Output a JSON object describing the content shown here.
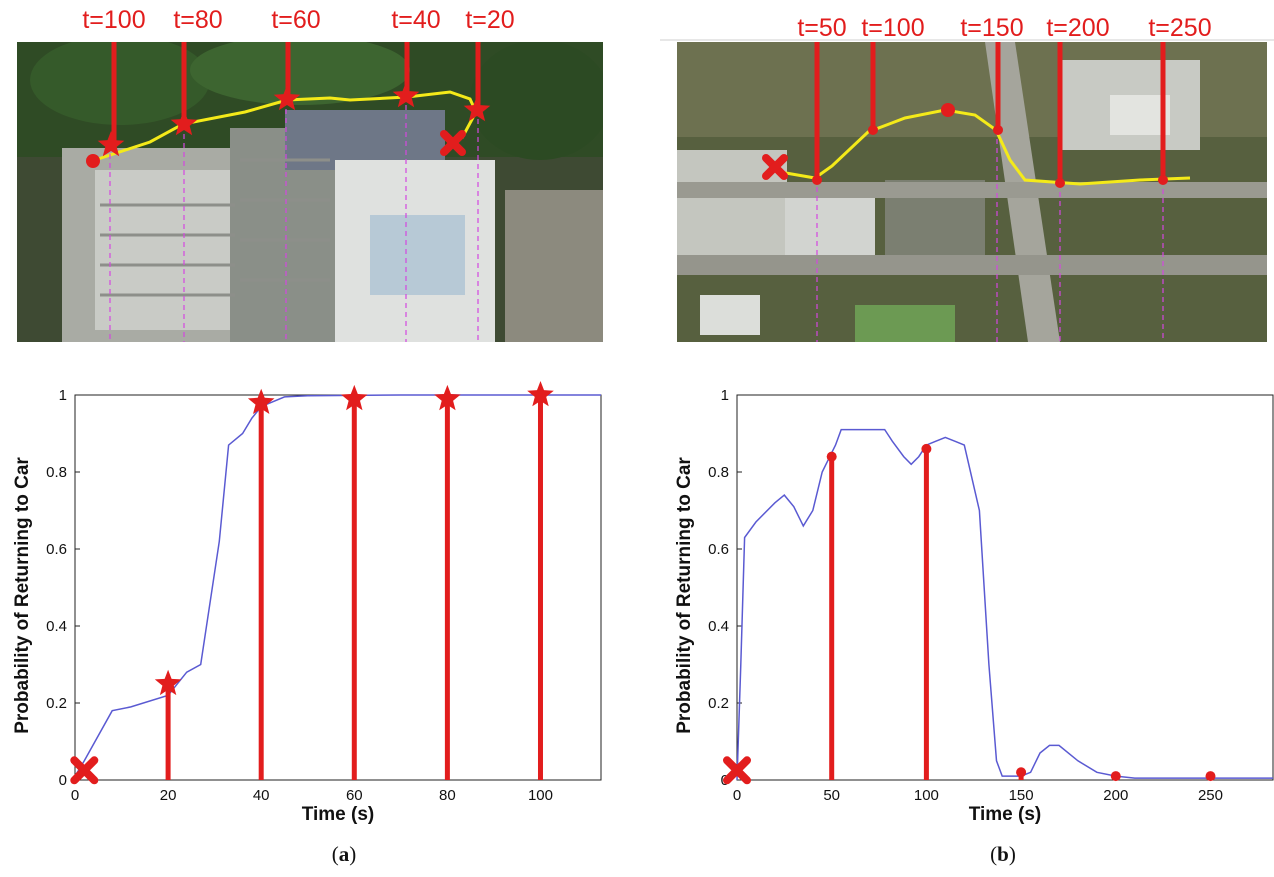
{
  "panels": [
    {
      "id": "a",
      "caption_letter": "a",
      "map_time_labels": [
        "t=100",
        "t=80",
        "t=60",
        "t=40",
        "t=20"
      ],
      "chart_data": {
        "type": "line",
        "xlabel": "Time (s)",
        "ylabel": "Probability of Returning to Car",
        "xlim": [
          0,
          113
        ],
        "ylim": [
          0,
          1
        ],
        "x_ticks": [
          0,
          20,
          40,
          60,
          80,
          100
        ],
        "y_ticks": [
          0,
          0.2,
          0.4,
          0.6,
          0.8,
          1
        ],
        "grid": false,
        "series": [
          {
            "x": [
              0,
              2,
              8,
              12,
              20,
              24,
              27,
              31,
              33,
              36,
              38,
              40,
              45,
              50,
              60,
              70,
              80,
              90,
              100,
              113
            ],
            "y": [
              0.01,
              0.05,
              0.18,
              0.19,
              0.22,
              0.28,
              0.3,
              0.62,
              0.87,
              0.9,
              0.94,
              0.97,
              0.995,
              0.998,
              0.999,
              1,
              1,
              1,
              1,
              1
            ]
          }
        ],
        "event_lines": [
          {
            "x": 20,
            "y": 0.25,
            "marker": "star"
          },
          {
            "x": 40,
            "y": 0.98,
            "marker": "star"
          },
          {
            "x": 60,
            "y": 0.99,
            "marker": "star"
          },
          {
            "x": 80,
            "y": 0.99,
            "marker": "star"
          },
          {
            "x": 100,
            "y": 1.0,
            "marker": "star"
          }
        ],
        "start_marker": {
          "x": 2,
          "y": 0.02,
          "marker": "cross"
        }
      }
    },
    {
      "id": "b",
      "caption_letter": "b",
      "map_time_labels": [
        "t=50",
        "t=100",
        "t=150",
        "t=200",
        "t=250"
      ],
      "chart_data": {
        "type": "line",
        "xlabel": "Time (s)",
        "ylabel": "Probability of Returning to Car",
        "xlim": [
          0,
          283
        ],
        "ylim": [
          0,
          1
        ],
        "x_ticks": [
          0,
          50,
          100,
          150,
          200,
          250
        ],
        "y_ticks": [
          0,
          0.2,
          0.4,
          0.6,
          0.8,
          1
        ],
        "grid": false,
        "series": [
          {
            "x": [
              0,
              2,
              4,
              10,
              20,
              25,
              30,
              35,
              40,
              45,
              48,
              52,
              55,
              60,
              70,
              78,
              82,
              88,
              92,
              96,
              100,
              105,
              110,
              115,
              120,
              128,
              133,
              137,
              140,
              150,
              155,
              160,
              165,
              170,
              180,
              190,
              200,
              210,
              283
            ],
            "y": [
              0.0,
              0.3,
              0.63,
              0.67,
              0.72,
              0.74,
              0.71,
              0.66,
              0.7,
              0.8,
              0.83,
              0.87,
              0.91,
              0.91,
              0.91,
              0.91,
              0.88,
              0.84,
              0.82,
              0.84,
              0.87,
              0.88,
              0.89,
              0.88,
              0.87,
              0.7,
              0.3,
              0.05,
              0.01,
              0.01,
              0.02,
              0.07,
              0.09,
              0.09,
              0.05,
              0.02,
              0.01,
              0.005,
              0.005
            ]
          }
        ],
        "event_lines": [
          {
            "x": 50,
            "y": 0.84,
            "marker": "dot"
          },
          {
            "x": 100,
            "y": 0.86,
            "marker": "dot"
          },
          {
            "x": 150,
            "y": 0.02,
            "marker": "dot"
          },
          {
            "x": 200,
            "y": 0.01,
            "marker": "dot"
          },
          {
            "x": 250,
            "y": 0.01,
            "marker": "dot"
          }
        ],
        "start_marker": {
          "x": 0,
          "y": 0.02,
          "marker": "cross"
        }
      }
    }
  ],
  "colors": {
    "line": "#5a5ad2",
    "event": "#e21d1d",
    "path": "#f4ea19",
    "guide": "#d447e0"
  }
}
